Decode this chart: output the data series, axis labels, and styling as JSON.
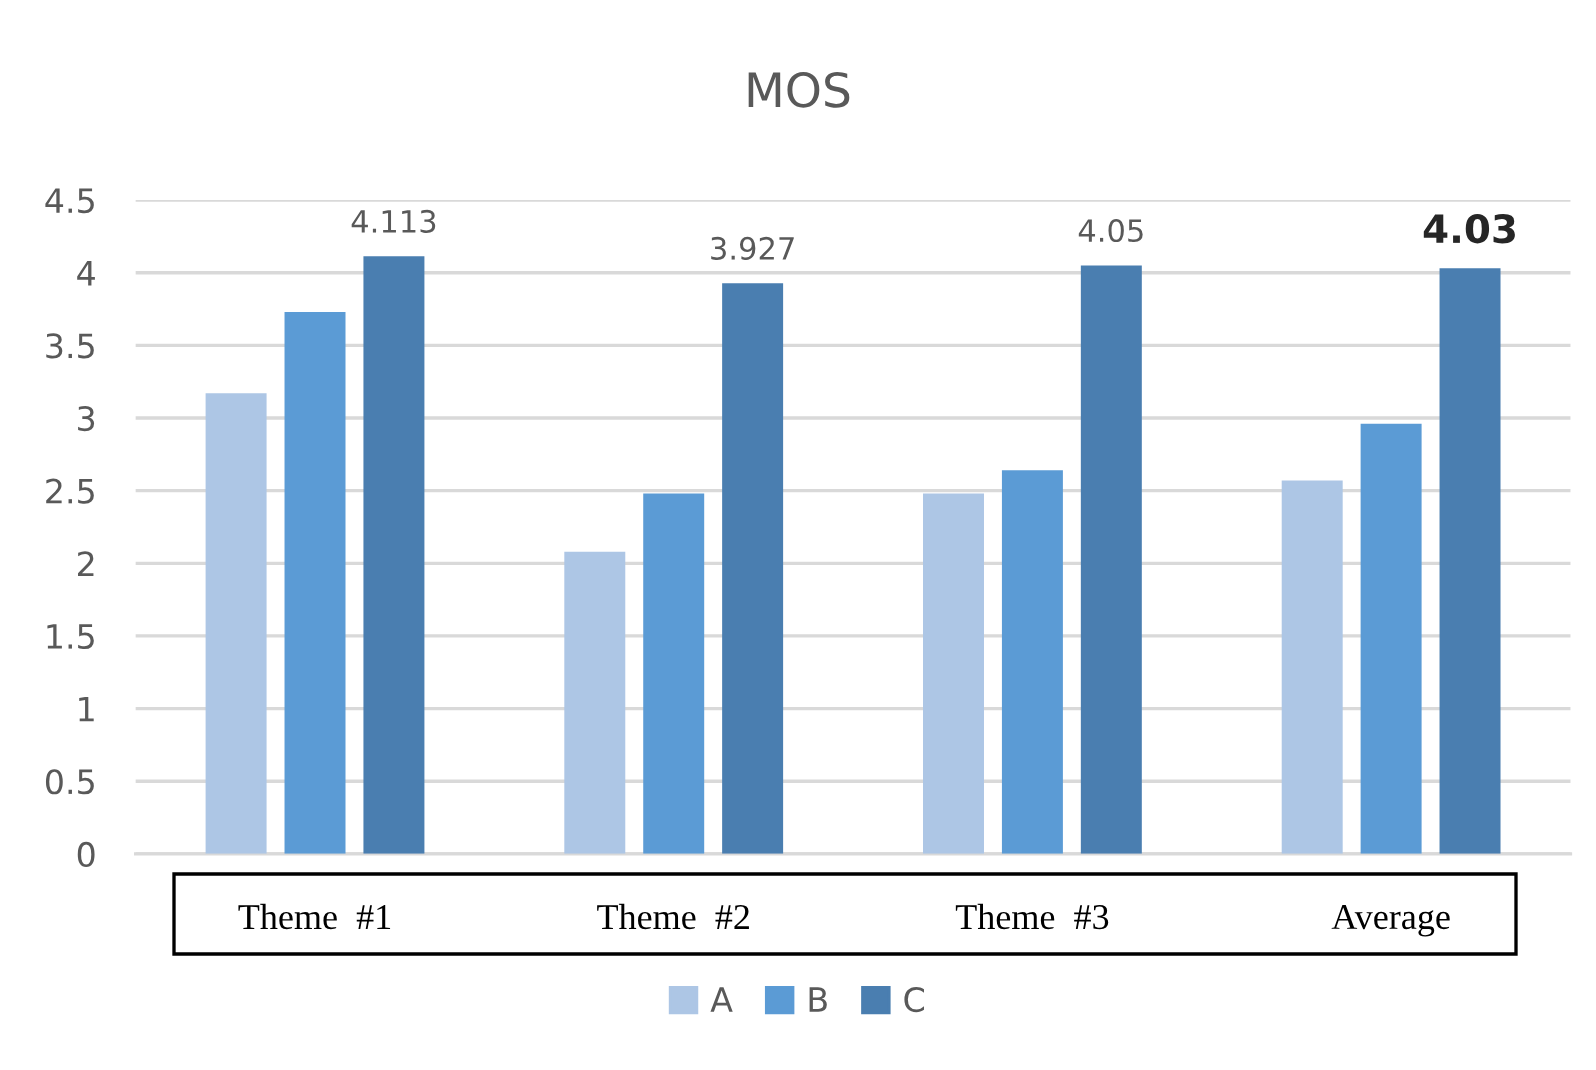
{
  "chart_data": {
    "type": "bar",
    "title": "MOS",
    "categories": [
      "Theme  #1",
      "Theme  #2",
      "Theme  #3",
      "Average"
    ],
    "series": [
      {
        "name": "A",
        "color": "#adc6e5",
        "values": [
          3.17,
          2.08,
          2.48,
          2.57
        ]
      },
      {
        "name": "B",
        "color": "#5b9bd5",
        "values": [
          3.73,
          2.48,
          2.64,
          2.96
        ]
      },
      {
        "name": "C",
        "color": "#4a7eb0",
        "values": [
          4.113,
          3.927,
          4.05,
          4.03
        ],
        "value_labels": [
          "4.113",
          "3.927",
          "4.05",
          "4.03"
        ]
      }
    ],
    "ylim": [
      0,
      4.5
    ],
    "yticks": [
      0,
      0.5,
      1,
      1.5,
      2,
      2.5,
      3,
      3.5,
      4,
      4.5
    ],
    "grid": "y",
    "legend": "bottom"
  }
}
